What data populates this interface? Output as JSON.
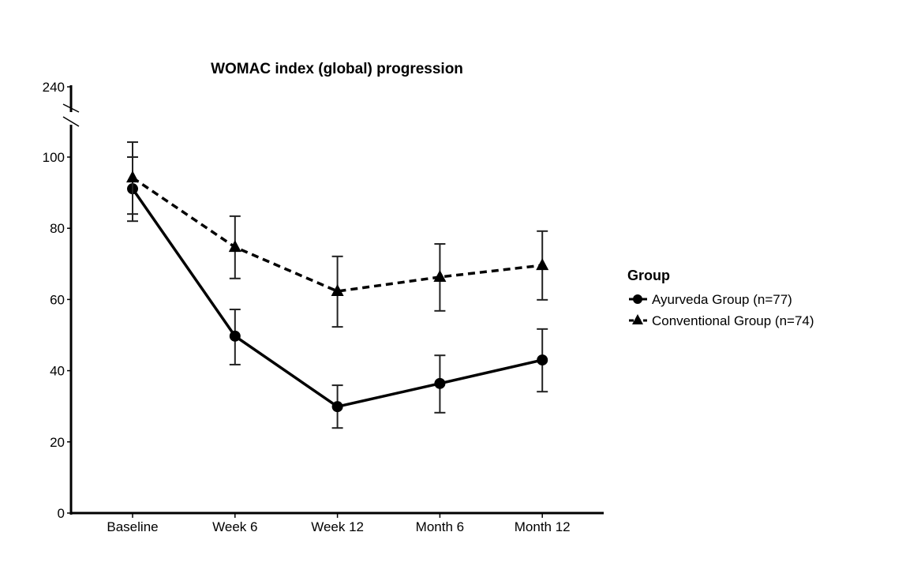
{
  "chart_data": {
    "type": "line",
    "title": "WOMAC index (global) progression",
    "xlabel": "",
    "ylabel": "",
    "categories": [
      "Baseline",
      "Week 6",
      "Week 12",
      "Month 6",
      "Month 12"
    ],
    "ylim": [
      0,
      100
    ],
    "y_break_top_label": "240",
    "yticks": [
      0,
      20,
      40,
      60,
      80,
      100
    ],
    "grid": false,
    "legend": {
      "title": "Group",
      "placement": "right"
    },
    "series": [
      {
        "name": "Ayurveda Group (n=77)",
        "marker": "circle",
        "line": "solid",
        "values": [
          91.1,
          49.7,
          29.9,
          36.4,
          43.0
        ],
        "err_low": [
          84.0,
          41.7,
          23.9,
          28.2,
          34.1
        ],
        "err_high": [
          100.0,
          57.2,
          35.9,
          44.3,
          51.7
        ]
      },
      {
        "name": "Conventional Group (n=74)",
        "marker": "triangle",
        "line": "dashed",
        "values": [
          94.2,
          74.7,
          62.3,
          66.3,
          69.6
        ],
        "err_low": [
          82.0,
          65.9,
          52.3,
          56.8,
          59.9
        ],
        "err_high": [
          104.2,
          83.4,
          72.1,
          75.6,
          79.2
        ]
      }
    ]
  }
}
